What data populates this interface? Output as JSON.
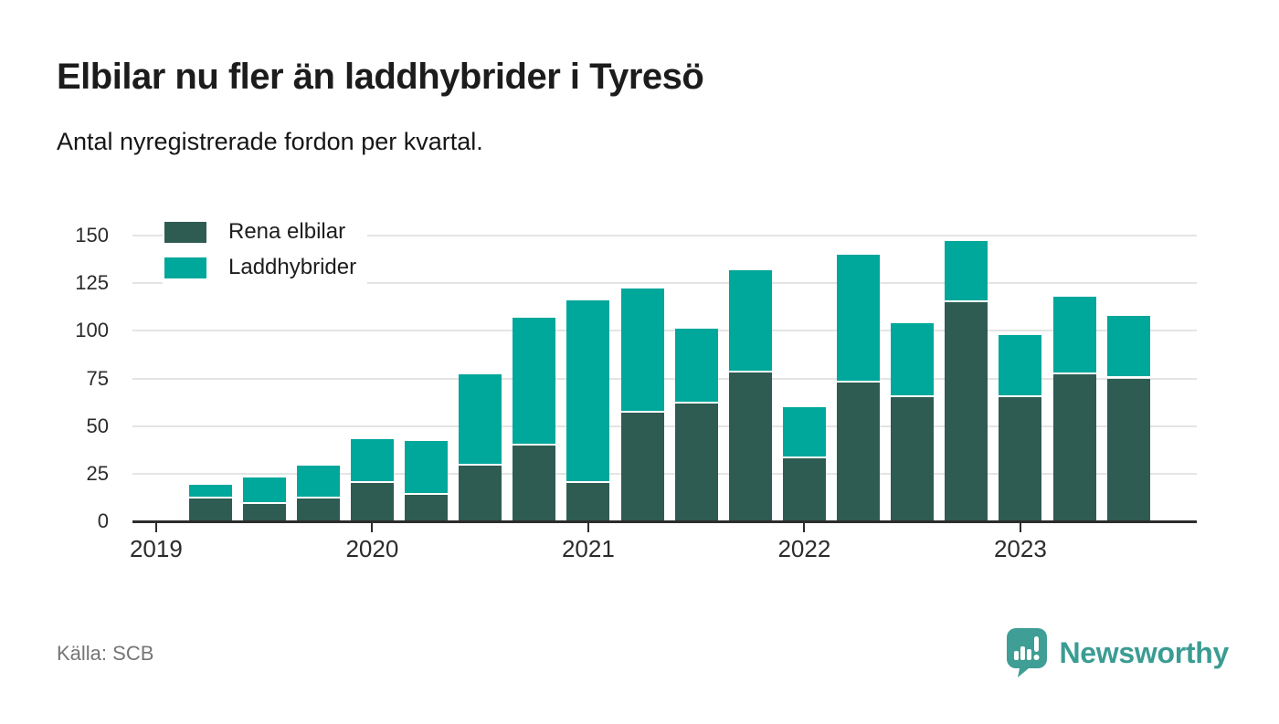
{
  "header": {
    "title": "Elbilar nu fler än laddhybrider i Tyresö",
    "subtitle": "Antal nyregistrerade fordon per kvartal."
  },
  "footer": {
    "source": "Källa: SCB",
    "brand": "Newsworthy"
  },
  "colors": {
    "elbilar": "#2f5c52",
    "laddhybrider": "#00a79b",
    "axis": "#2d2d2d",
    "grid": "#e4e4e4",
    "brand_teal": "#3a9c93"
  },
  "chart_data": {
    "type": "bar",
    "stacked": true,
    "title": "Elbilar nu fler än laddhybrider i Tyresö",
    "subtitle": "Antal nyregistrerade fordon per kvartal.",
    "categories": [
      "2019-Q2",
      "2019-Q3",
      "2019-Q4",
      "2020-Q1",
      "2020-Q2",
      "2020-Q3",
      "2020-Q4",
      "2021-Q1",
      "2021-Q2",
      "2021-Q3",
      "2021-Q4",
      "2022-Q1",
      "2022-Q2",
      "2022-Q3",
      "2022-Q4",
      "2023-Q1",
      "2023-Q2",
      "2023-Q3"
    ],
    "series": [
      {
        "name": "Rena elbilar",
        "color_key": "elbilar",
        "values": [
          12,
          9,
          12,
          20,
          14,
          29,
          40,
          20,
          57,
          62,
          78,
          33,
          73,
          65,
          115,
          65,
          77,
          75
        ]
      },
      {
        "name": "Laddhybrider",
        "color_key": "laddhybrider",
        "values": [
          7,
          14,
          17,
          23,
          28,
          48,
          67,
          96,
          65,
          39,
          54,
          27,
          67,
          39,
          32,
          33,
          41,
          33
        ]
      }
    ],
    "y_ticks": [
      0,
      25,
      50,
      75,
      100,
      125,
      150
    ],
    "x_tick_years": [
      "2019",
      "2020",
      "2021",
      "2022",
      "2023"
    ],
    "ylim": [
      0,
      150
    ],
    "xlabel": "",
    "ylabel": "",
    "grid": "horizontal",
    "legend_position": "top-left"
  }
}
